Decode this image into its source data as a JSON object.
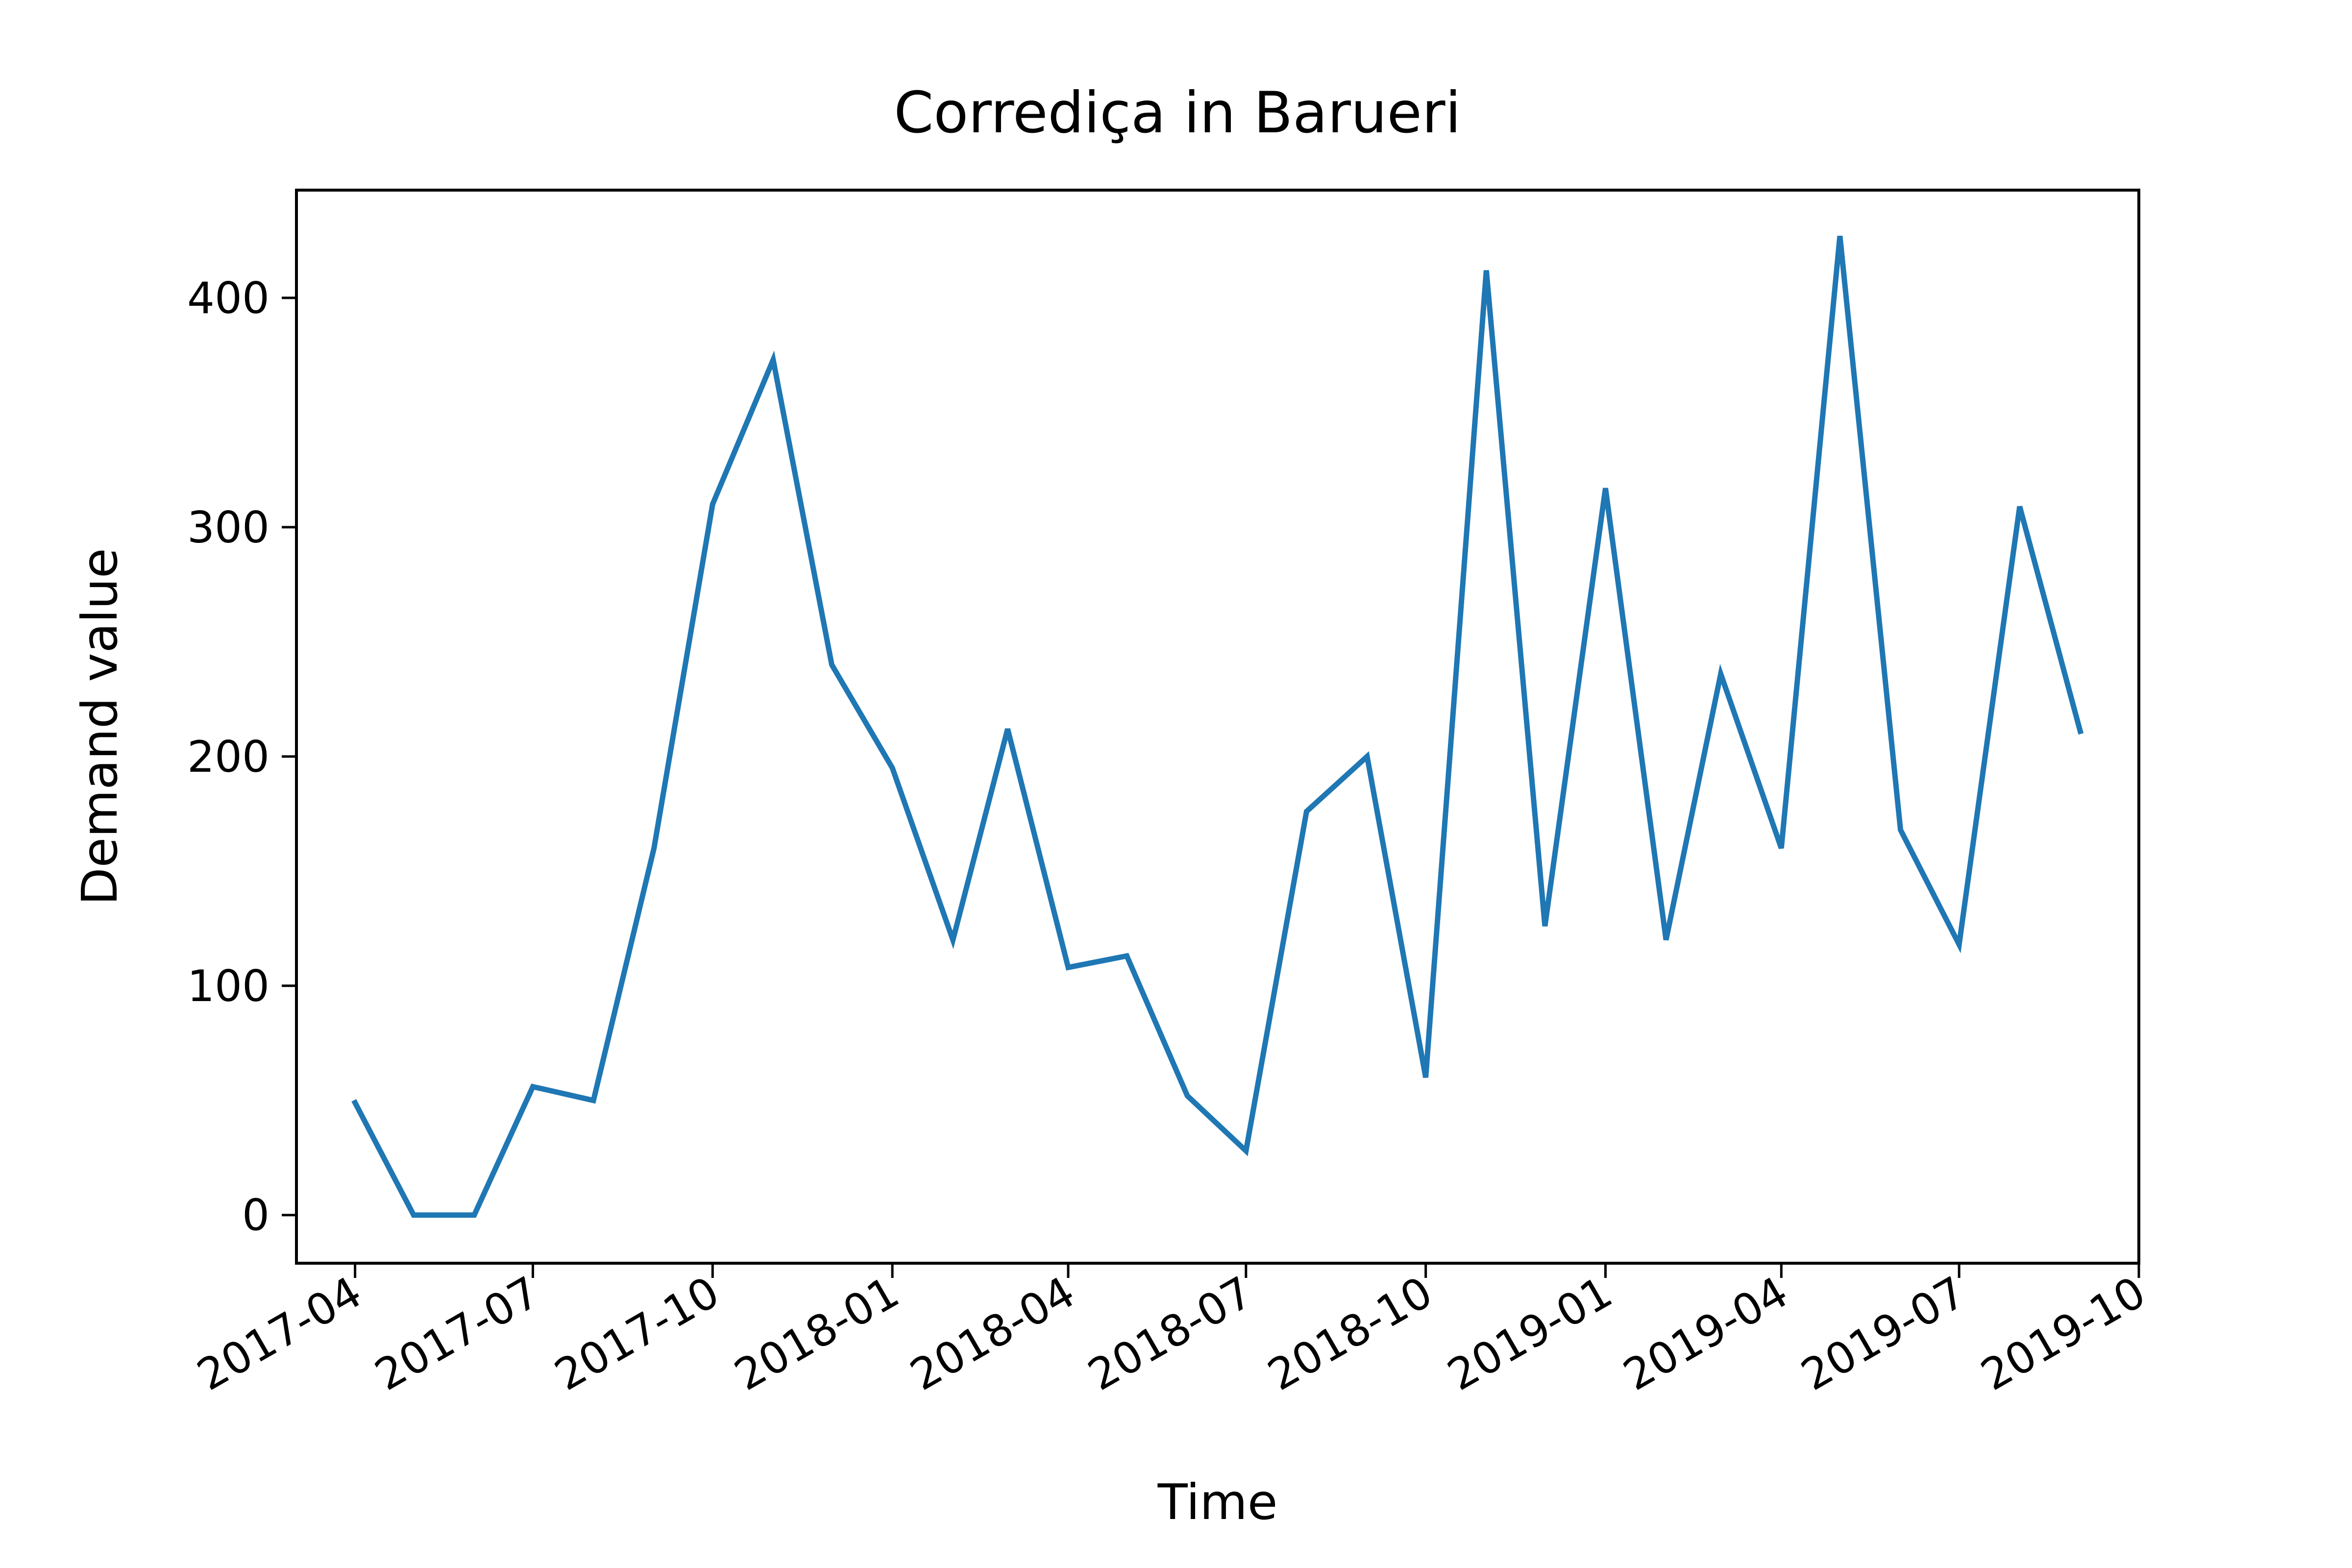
{
  "chart_data": {
    "type": "line",
    "title": "Corrediça in Barueri",
    "xlabel": "Time",
    "ylabel": "Demand value",
    "x": [
      "2017-04",
      "2017-05",
      "2017-06",
      "2017-07",
      "2017-08",
      "2017-09",
      "2017-10",
      "2017-11",
      "2017-12",
      "2018-01",
      "2018-02",
      "2018-03",
      "2018-04",
      "2018-05",
      "2018-06",
      "2018-07",
      "2018-08",
      "2018-09",
      "2018-10",
      "2018-11",
      "2018-12",
      "2019-01",
      "2019-02",
      "2019-03",
      "2019-04",
      "2019-05",
      "2019-06",
      "2019-07",
      "2019-08",
      "2019-09"
    ],
    "series": [
      {
        "values": [
          49,
          0,
          0,
          56,
          50,
          160,
          310,
          373,
          240,
          195,
          120,
          212,
          108,
          113,
          52,
          28,
          176,
          200,
          60,
          412,
          126,
          317,
          120,
          236,
          160,
          427,
          168,
          118,
          309,
          211
        ],
        "color": "#1f77b4"
      }
    ],
    "x_ticks": [
      "2017-04",
      "2017-07",
      "2017-10",
      "2018-01",
      "2018-04",
      "2018-07",
      "2018-10",
      "2019-01",
      "2019-04",
      "2019-07",
      "2019-10"
    ],
    "y_ticks": [
      0,
      100,
      200,
      300,
      400
    ],
    "xlim": [
      "2017-03-02",
      "2019-10-01"
    ],
    "ylim": [
      -21,
      447
    ],
    "grid": false,
    "legend": "none"
  }
}
